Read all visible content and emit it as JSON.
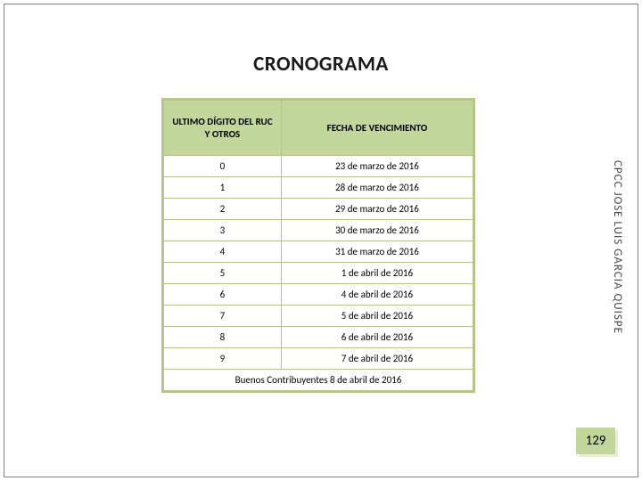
{
  "title": "CRONOGRAMA",
  "side_text": "CPCC JOSE LUIS GARCIA QUISPE",
  "page_number": "129",
  "table": {
    "header": {
      "col1": "ULTIMO DÍGITO DEL RUC Y OTROS",
      "col2": "FECHA DE VENCIMIENTO"
    },
    "rows": [
      {
        "c1": "0",
        "c2": "23 de marzo de 2016"
      },
      {
        "c1": "1",
        "c2": "28 de marzo de 2016"
      },
      {
        "c1": "2",
        "c2": "29 de marzo de 2016"
      },
      {
        "c1": "3",
        "c2": "30 de marzo de 2016"
      },
      {
        "c1": "4",
        "c2": "31 de marzo de 2016"
      },
      {
        "c1": "5",
        "c2": "1 de abril de 2016"
      },
      {
        "c1": "6",
        "c2": "4 de abril de 2016"
      },
      {
        "c1": "7",
        "c2": "5 de abril de 2016"
      },
      {
        "c1": "8",
        "c2": "6 de abril de 2016"
      },
      {
        "c1": "9",
        "c2": "7 de abril de 2016"
      }
    ],
    "footer": "Buenos Contribuyentes 8 de abril de 2016"
  },
  "colors": {
    "header_bg": "#c3d69b",
    "border": "#b8c58a",
    "pagenum_bg": "#c3d69b"
  }
}
